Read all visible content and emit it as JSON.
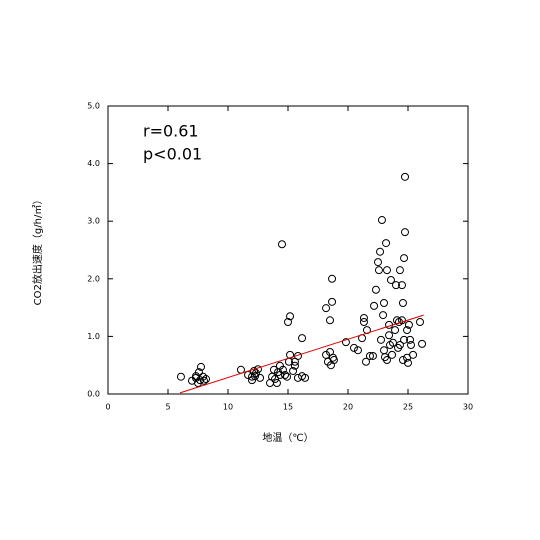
{
  "chart_data": {
    "type": "scatter",
    "x_label": "地温（℃）",
    "y_label": "CO2放出速度（g/h/㎡）",
    "annotations": [
      "r=0.61",
      "p<0.01"
    ],
    "xlim": [
      0,
      30
    ],
    "xticks": [
      0,
      5,
      10,
      15,
      20,
      25,
      30
    ],
    "ylim": [
      0,
      5
    ],
    "yticks": [
      {
        "value": 0,
        "label": "0.0"
      },
      {
        "value": 1,
        "label": "1.0"
      },
      {
        "value": 2,
        "label": "2.0"
      },
      {
        "value": 3,
        "label": "3.0"
      },
      {
        "value": 4,
        "label": "4.0"
      },
      {
        "value": 5,
        "label": "5.0"
      }
    ],
    "marker_color": "#000000",
    "x": [
      6.08,
      7.0,
      7.33,
      7.58,
      7.75,
      7.33,
      7.67,
      8.0,
      8.17,
      7.5,
      7.92,
      11.08,
      11.67,
      12.0,
      12.17,
      12.33,
      12.5,
      12.0,
      12.67,
      12.25,
      13.5,
      13.67,
      13.92,
      14.08,
      14.33,
      14.58,
      14.75,
      14.92,
      15.08,
      15.17,
      15.42,
      15.58,
      14.33,
      14.17,
      13.83,
      14.5,
      15.0,
      15.17,
      16.17,
      15.83,
      16.17,
      16.42,
      15.58,
      15.83,
      18.17,
      18.5,
      18.67,
      18.67,
      18.17,
      18.5,
      18.75,
      18.33,
      18.58,
      18.83,
      19.83,
      20.5,
      20.83,
      21.17,
      21.33,
      21.5,
      21.83,
      21.58,
      21.33,
      22.08,
      22.17,
      22.33,
      22.5,
      22.67,
      22.58,
      22.83,
      23.0,
      23.17,
      23.25,
      22.92,
      22.75,
      23.08,
      23.0,
      23.25,
      23.42,
      23.42,
      23.5,
      23.58,
      23.67,
      23.75,
      23.92,
      24.0,
      24.17,
      24.08,
      24.25,
      24.33,
      24.5,
      24.33,
      24.58,
      24.5,
      24.67,
      24.75,
      24.75,
      24.67,
      24.58,
      24.92,
      24.92,
      25.0,
      25.08,
      25.17,
      25.25,
      25.42,
      26.0,
      26.17
    ],
    "values": [
      0.3,
      0.23,
      0.28,
      0.38,
      0.47,
      0.31,
      0.24,
      0.23,
      0.26,
      0.19,
      0.3,
      0.42,
      0.33,
      0.3,
      0.4,
      0.36,
      0.43,
      0.24,
      0.28,
      0.31,
      0.19,
      0.3,
      0.26,
      0.19,
      0.49,
      0.42,
      0.33,
      0.3,
      0.56,
      0.68,
      0.4,
      0.49,
      0.33,
      0.38,
      0.42,
      2.6,
      1.25,
      1.35,
      0.97,
      0.28,
      0.31,
      0.28,
      0.56,
      0.66,
      1.49,
      1.28,
      2.0,
      1.6,
      0.68,
      0.73,
      0.63,
      0.56,
      0.5,
      0.59,
      0.9,
      0.8,
      0.76,
      0.97,
      1.25,
      0.56,
      0.66,
      1.11,
      1.32,
      0.66,
      1.53,
      1.81,
      2.29,
      2.47,
      2.15,
      3.02,
      1.58,
      2.62,
      2.15,
      1.37,
      0.94,
      0.64,
      0.76,
      0.59,
      1.02,
      1.2,
      0.85,
      1.98,
      0.68,
      0.89,
      1.11,
      1.89,
      0.8,
      1.28,
      1.25,
      2.15,
      1.89,
      0.85,
      0.59,
      1.28,
      0.94,
      3.77,
      2.81,
      2.36,
      1.58,
      1.11,
      0.63,
      0.54,
      1.2,
      0.94,
      0.85,
      0.68,
      1.25,
      0.87
    ],
    "trend_line": {
      "x": [
        6.0,
        26.3
      ],
      "y": [
        0.02,
        1.37
      ],
      "color": "#e00000"
    }
  }
}
